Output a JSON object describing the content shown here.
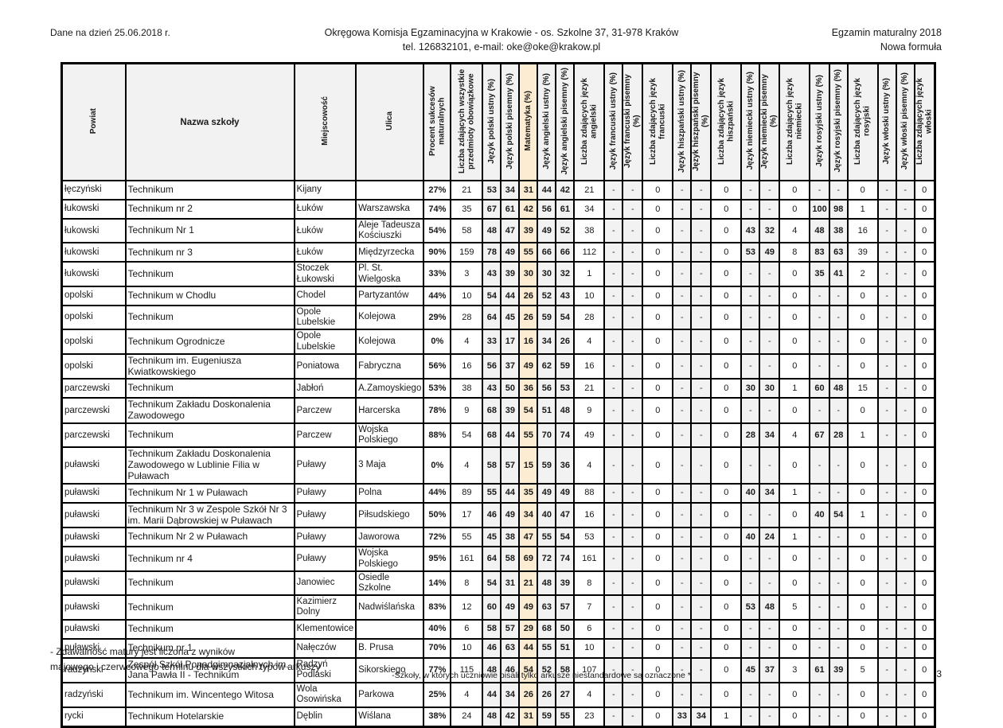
{
  "header": {
    "date_note": "Dane na dzień 25.06.2018 r.",
    "org_line1": "Okręgowa Komisja Egzaminacyjna w Krakowie - os. Szkolne 37, 31-978 Kraków",
    "org_line2": "tel. 126832101, e-mail: oke@oke@krakow.pl",
    "exam_title": "Egzamin maturalny 2018",
    "exam_subtitle": "Nowa formuła"
  },
  "colors": {
    "highlight_yellow": "#fcecd1",
    "header_gray": "#f2f2f2",
    "border_black": "#000000"
  },
  "table": {
    "columns": [
      "Powiat",
      "Nazwa szkoły",
      "Miejscowość",
      "Ulica",
      "Procent sukcesów maturalnych",
      "Liczba zdających wszystkie przedmioty obowiązkowe",
      "Język polski ustny (%)",
      "Język polski pisemny (%)",
      "Matematyka (%)",
      "Język angielski ustny (%)",
      "Język angielski pisemny (%)",
      "Liczba zdających język angielski",
      "Język francuski ustny (%)",
      "Język francuski pisemny (%)",
      "Liczba zdających język francuski",
      "Język hiszpański ustny (%)",
      "Język hiszpański pisemny (%)",
      "Liczba zdających język hiszpański",
      "Język niemiecki ustny (%)",
      "Język niemiecki pisemny (%)",
      "Liczba zdających język niemiecki",
      "Język rosyjski ustny (%)",
      "Język rosyjski pisemny (%)",
      "Liczba zdających język rosyjski",
      "Język włoski ustny (%)",
      "Język włoski pisemny (%)",
      "Liczba zdających język włoski"
    ],
    "highlight_column": "Matematyka (%)",
    "rows": [
      [
        "łęczyński",
        "Technikum",
        "Kijany",
        "",
        "27%",
        "21",
        "53",
        "34",
        "31",
        "44",
        "42",
        "21",
        "-",
        "-",
        "0",
        "-",
        "-",
        "0",
        "-",
        "-",
        "0",
        "-",
        "-",
        "0",
        "-",
        "-",
        "0"
      ],
      [
        "łukowski",
        "Technikum nr 2",
        "Łuków",
        "Warszawska",
        "74%",
        "35",
        "67",
        "61",
        "42",
        "56",
        "61",
        "34",
        "-",
        "-",
        "0",
        "-",
        "-",
        "0",
        "-",
        "-",
        "0",
        "100",
        "98",
        "1",
        "-",
        "-",
        "0"
      ],
      [
        "łukowski",
        "Technikum Nr 1",
        "Łuków",
        "Aleje Tadeusza Kościuszki",
        "54%",
        "58",
        "48",
        "47",
        "39",
        "49",
        "52",
        "38",
        "-",
        "-",
        "0",
        "-",
        "-",
        "0",
        "43",
        "32",
        "4",
        "48",
        "38",
        "16",
        "-",
        "-",
        "0"
      ],
      [
        "łukowski",
        "Technikum nr 3",
        "Łuków",
        "Międzyrzecka",
        "90%",
        "159",
        "78",
        "49",
        "55",
        "66",
        "66",
        "112",
        "-",
        "-",
        "0",
        "-",
        "-",
        "0",
        "53",
        "49",
        "8",
        "83",
        "63",
        "39",
        "-",
        "-",
        "0"
      ],
      [
        "łukowski",
        "Technikum",
        "Stoczek Łukowski",
        "Pl. St. Wielgoska",
        "33%",
        "3",
        "43",
        "39",
        "30",
        "30",
        "32",
        "1",
        "-",
        "-",
        "0",
        "-",
        "-",
        "0",
        "-",
        "-",
        "0",
        "35",
        "41",
        "2",
        "-",
        "-",
        "0"
      ],
      [
        "opolski",
        "Technikum w Chodlu",
        "Chodel",
        "Partyzantów",
        "44%",
        "10",
        "54",
        "44",
        "26",
        "52",
        "43",
        "10",
        "-",
        "-",
        "0",
        "-",
        "-",
        "0",
        "-",
        "-",
        "0",
        "-",
        "-",
        "0",
        "-",
        "-",
        "0"
      ],
      [
        "opolski",
        "Technikum",
        "Opole Lubelskie",
        "Kolejowa",
        "29%",
        "28",
        "64",
        "45",
        "26",
        "59",
        "54",
        "28",
        "-",
        "-",
        "0",
        "-",
        "-",
        "0",
        "-",
        "-",
        "0",
        "-",
        "-",
        "0",
        "-",
        "-",
        "0"
      ],
      [
        "opolski",
        "Technikum Ogrodnicze",
        "Opole Lubelskie",
        "Kolejowa",
        "0%",
        "4",
        "33",
        "17",
        "16",
        "34",
        "26",
        "4",
        "-",
        "-",
        "0",
        "-",
        "-",
        "0",
        "-",
        "-",
        "0",
        "-",
        "-",
        "0",
        "-",
        "-",
        "0"
      ],
      [
        "opolski",
        "Technikum im. Eugeniusza Kwiatkowskiego",
        "Poniatowa",
        "Fabryczna",
        "56%",
        "16",
        "56",
        "37",
        "49",
        "62",
        "59",
        "16",
        "-",
        "-",
        "0",
        "-",
        "-",
        "0",
        "-",
        "-",
        "0",
        "-",
        "-",
        "0",
        "-",
        "-",
        "0"
      ],
      [
        "parczewski",
        "Technikum",
        "Jabłoń",
        "A.Zamoyskiego",
        "53%",
        "38",
        "43",
        "50",
        "36",
        "56",
        "53",
        "21",
        "-",
        "-",
        "0",
        "-",
        "-",
        "0",
        "30",
        "30",
        "1",
        "60",
        "48",
        "15",
        "-",
        "-",
        "0"
      ],
      [
        "parczewski",
        "Technikum Zakładu Doskonalenia Zawodowego",
        "Parczew",
        "Harcerska",
        "78%",
        "9",
        "68",
        "39",
        "54",
        "51",
        "48",
        "9",
        "-",
        "-",
        "0",
        "-",
        "-",
        "0",
        "-",
        "-",
        "0",
        "-",
        "-",
        "0",
        "-",
        "-",
        "0"
      ],
      [
        "parczewski",
        "Technikum",
        "Parczew",
        "Wojska Polskiego",
        "88%",
        "54",
        "68",
        "44",
        "55",
        "70",
        "74",
        "49",
        "-",
        "-",
        "0",
        "-",
        "-",
        "0",
        "28",
        "34",
        "4",
        "67",
        "28",
        "1",
        "-",
        "-",
        "0"
      ],
      [
        "puławski",
        "Technikum Zakładu Doskonalenia Zawodowego w Lublinie Filia w Puławach",
        "Puławy",
        "3 Maja",
        "0%",
        "4",
        "58",
        "57",
        "15",
        "59",
        "36",
        "4",
        "-",
        "-",
        "0",
        "-",
        "-",
        "0",
        "-",
        "-",
        "0",
        "-",
        "-",
        "0",
        "-",
        "-",
        "0"
      ],
      [
        "puławski",
        "Technikum Nr 1 w Puławach",
        "Puławy",
        "Polna",
        "44%",
        "89",
        "55",
        "44",
        "35",
        "49",
        "49",
        "88",
        "-",
        "-",
        "0",
        "-",
        "-",
        "0",
        "40",
        "34",
        "1",
        "-",
        "-",
        "0",
        "-",
        "-",
        "0"
      ],
      [
        "puławski",
        "Technikum Nr 3 w Zespole Szkół Nr 3 im. Marii Dąbrowskiej w Puławach",
        "Puławy",
        "Piłsudskiego",
        "50%",
        "17",
        "46",
        "49",
        "34",
        "40",
        "47",
        "16",
        "-",
        "-",
        "0",
        "-",
        "-",
        "0",
        "-",
        "-",
        "0",
        "40",
        "54",
        "1",
        "-",
        "-",
        "0"
      ],
      [
        "puławski",
        "Technikum Nr 2 w Puławach",
        "Puławy",
        "Jaworowa",
        "72%",
        "55",
        "45",
        "38",
        "47",
        "55",
        "54",
        "53",
        "-",
        "-",
        "0",
        "-",
        "-",
        "0",
        "40",
        "24",
        "1",
        "-",
        "-",
        "0",
        "-",
        "-",
        "0"
      ],
      [
        "puławski",
        "Technikum nr 4",
        "Puławy",
        "Wojska Polskiego",
        "95%",
        "161",
        "64",
        "58",
        "69",
        "72",
        "74",
        "161",
        "-",
        "-",
        "0",
        "-",
        "-",
        "0",
        "-",
        "-",
        "0",
        "-",
        "-",
        "0",
        "-",
        "-",
        "0"
      ],
      [
        "puławski",
        "Technikum",
        "Janowiec",
        "Osiedle Szkolne",
        "14%",
        "8",
        "54",
        "31",
        "21",
        "48",
        "39",
        "8",
        "-",
        "-",
        "0",
        "-",
        "-",
        "0",
        "-",
        "-",
        "0",
        "-",
        "-",
        "0",
        "-",
        "-",
        "0"
      ],
      [
        "puławski",
        "Technikum",
        "Kazimierz Dolny",
        "Nadwiślańska",
        "83%",
        "12",
        "60",
        "49",
        "49",
        "63",
        "57",
        "7",
        "-",
        "-",
        "0",
        "-",
        "-",
        "0",
        "53",
        "48",
        "5",
        "-",
        "-",
        "0",
        "-",
        "-",
        "0"
      ],
      [
        "puławski",
        "Technikum",
        "Klementowice",
        "",
        "40%",
        "6",
        "58",
        "57",
        "29",
        "68",
        "50",
        "6",
        "-",
        "-",
        "0",
        "-",
        "-",
        "0",
        "-",
        "-",
        "0",
        "-",
        "-",
        "0",
        "-",
        "-",
        "0"
      ],
      [
        "puławski",
        "Technikum nr 1",
        "Nałęczów",
        "B. Prusa",
        "70%",
        "10",
        "46",
        "63",
        "44",
        "55",
        "51",
        "10",
        "-",
        "-",
        "0",
        "-",
        "-",
        "0",
        "-",
        "-",
        "0",
        "-",
        "-",
        "0",
        "-",
        "-",
        "0"
      ],
      [
        "radzyński",
        "Zespół Szkół Ponadgimnazjalnych im. Jana Pawła II - Technikum",
        "Radzyń Podlaski",
        "Sikorskiego",
        "77%",
        "115",
        "48",
        "46",
        "54",
        "52",
        "58",
        "107",
        "-",
        "-",
        "0",
        "-",
        "-",
        "0",
        "45",
        "37",
        "3",
        "61",
        "39",
        "5",
        "-",
        "-",
        "0"
      ],
      [
        "radzyński",
        "Technikum im. Wincentego Witosa",
        "Wola Osowińska",
        "Parkowa",
        "25%",
        "4",
        "44",
        "34",
        "26",
        "26",
        "27",
        "4",
        "-",
        "-",
        "0",
        "-",
        "-",
        "0",
        "-",
        "-",
        "0",
        "-",
        "-",
        "0",
        "-",
        "-",
        "0"
      ],
      [
        "rycki",
        "Technikum Hotelarskie",
        "Dęblin",
        "Wiślana",
        "38%",
        "24",
        "48",
        "42",
        "31",
        "59",
        "55",
        "23",
        "-",
        "-",
        "0",
        "33",
        "34",
        "1",
        "-",
        "-",
        "0",
        "-",
        "-",
        "0",
        "-",
        "-",
        "0"
      ]
    ]
  },
  "footer": {
    "note_line1": "- Zdawalność matury jest liczona z wyników",
    "note_line2": "majowego i czerwcowego terminu dla wszystkich typów arkuszy",
    "note_center": "-Szkoły, w których uczniowie pisali tylko arkusze niestandardowe są oznaczone *",
    "page_number": "3"
  }
}
